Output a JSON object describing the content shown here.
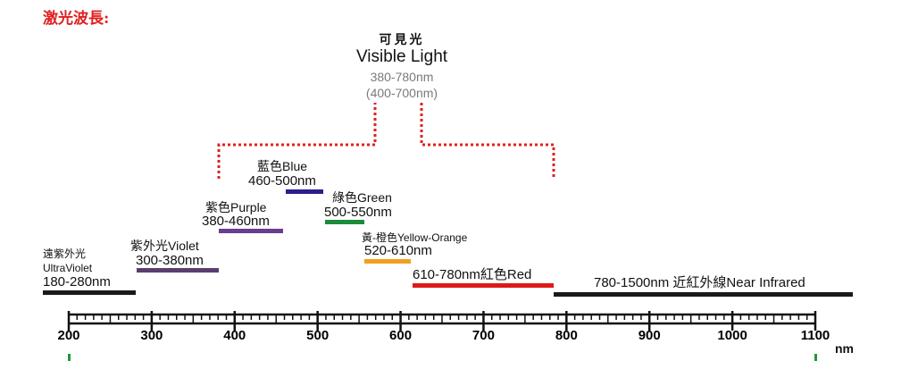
{
  "title": "激光波長:",
  "visible": {
    "cn": "可見光",
    "en": "Visible Light",
    "range1": "380-780nm",
    "range2": "(400-700nm)"
  },
  "bands": {
    "uv": {
      "cn": "遠紫外光",
      "en": "UltraViolet",
      "range": "180-280nm",
      "color": "#1a1a1a"
    },
    "violet": {
      "label": "紫外光Violet",
      "range": "300-380nm",
      "color": "#5a3f6e"
    },
    "purple": {
      "label": "紫色Purple",
      "range": "380-460nm",
      "color": "#6a3d8f"
    },
    "blue": {
      "label": "藍色Blue",
      "range": "460-500nm",
      "color": "#2a1e8c"
    },
    "green": {
      "label": "綠色Green",
      "range": "500-550nm",
      "color": "#1c8c3a"
    },
    "yellow": {
      "label": "黃-橙色Yellow-Orange",
      "range": "520-610nm",
      "color": "#f0a020"
    },
    "red": {
      "label": "610-780nm紅色Red",
      "color": "#e01818"
    },
    "ir": {
      "label": "780-1500nm 近紅外線Near Infrared",
      "color": "#1a1a1a"
    }
  },
  "axis": {
    "unit": "nm",
    "ticks": [
      "200",
      "300",
      "400",
      "500",
      "600",
      "700",
      "800",
      "900",
      "1000",
      "1100"
    ],
    "bracket_color": "#e02020"
  }
}
